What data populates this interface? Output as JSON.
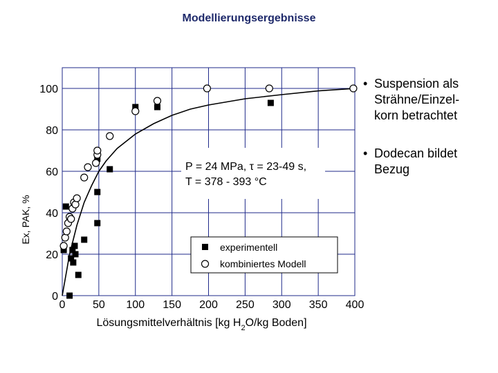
{
  "slide": {
    "title": "Modellierungsergebnisse"
  },
  "bullets": [
    {
      "text": "Suspension als\nSträhne/Einzel-\nkorn betrachtet"
    },
    {
      "text": "Dodecan bildet\nBezug"
    }
  ],
  "chart_data": {
    "type": "scatter",
    "xlabel_parts": [
      "Lösungsmittelverhältnis [kg H",
      "2",
      "O/kg Boden]"
    ],
    "ylabel": "Ex, PAK, %",
    "xlim": [
      0,
      400
    ],
    "ylim": [
      0,
      100
    ],
    "x_ticks": [
      0,
      50,
      100,
      150,
      200,
      250,
      300,
      350,
      400
    ],
    "y_ticks": [
      0,
      20,
      40,
      60,
      80,
      100
    ],
    "grid": true,
    "conditions": [
      "P = 24 MPa, τ = 23-49 s,",
      "T  = 378 - 393 °C"
    ],
    "legend_position": "lower-right",
    "series": [
      {
        "name": "experimentell",
        "marker": "square-filled",
        "color": "#000000",
        "points": [
          [
            2,
            22
          ],
          [
            5,
            43
          ],
          [
            10,
            0
          ],
          [
            12,
            18
          ],
          [
            14,
            22
          ],
          [
            15,
            16
          ],
          [
            17,
            24
          ],
          [
            18,
            20
          ],
          [
            22,
            10
          ],
          [
            30,
            27
          ],
          [
            48,
            35
          ],
          [
            48,
            50
          ],
          [
            48,
            66
          ],
          [
            65,
            61
          ],
          [
            100,
            91
          ],
          [
            130,
            91
          ],
          [
            285,
            93
          ]
        ]
      },
      {
        "name": "kombiniertes Modell",
        "marker": "circle-open",
        "color": "#000000",
        "points": [
          [
            2,
            24
          ],
          [
            4,
            28
          ],
          [
            6,
            31
          ],
          [
            8,
            35
          ],
          [
            10,
            38
          ],
          [
            12,
            37
          ],
          [
            14,
            42
          ],
          [
            16,
            45
          ],
          [
            18,
            44
          ],
          [
            20,
            47
          ],
          [
            30,
            57
          ],
          [
            35,
            62
          ],
          [
            46,
            64
          ],
          [
            48,
            68
          ],
          [
            48,
            70
          ],
          [
            65,
            77
          ],
          [
            100,
            89
          ],
          [
            130,
            94
          ],
          [
            198,
            100
          ],
          [
            283,
            100
          ],
          [
            398,
            100
          ]
        ]
      },
      {
        "name": "",
        "type": "line",
        "color": "#000000",
        "points": [
          [
            0,
            0
          ],
          [
            10,
            20
          ],
          [
            20,
            34
          ],
          [
            30,
            45
          ],
          [
            40,
            53
          ],
          [
            50,
            60
          ],
          [
            60,
            65
          ],
          [
            75,
            71
          ],
          [
            100,
            78
          ],
          [
            125,
            83
          ],
          [
            150,
            87
          ],
          [
            175,
            90
          ],
          [
            200,
            92
          ],
          [
            250,
            95
          ],
          [
            300,
            97
          ],
          [
            350,
            98.8
          ],
          [
            400,
            100
          ]
        ]
      }
    ]
  }
}
